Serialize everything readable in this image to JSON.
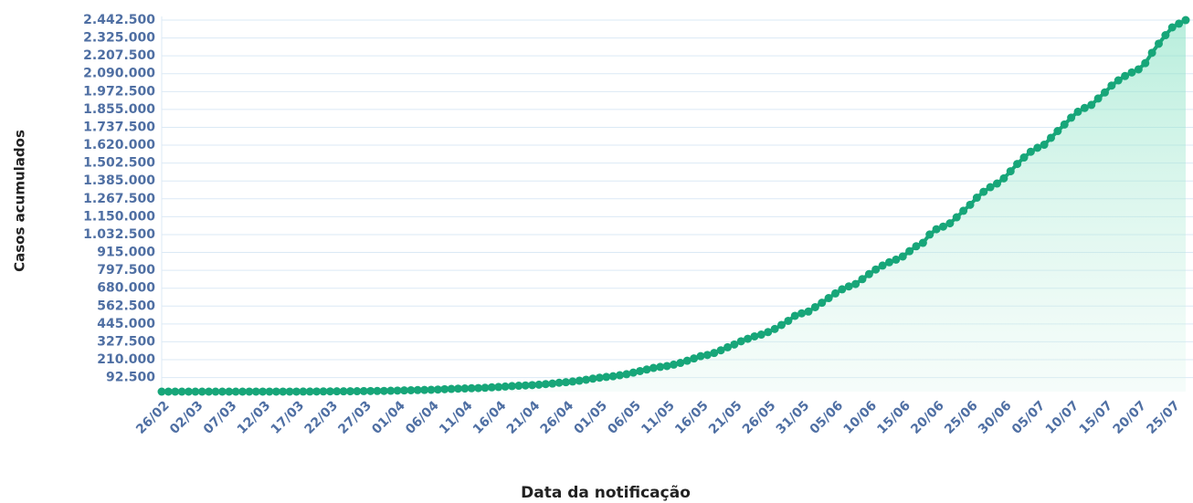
{
  "chart_data": {
    "type": "area-line",
    "y_label": "Casos acumulados",
    "x_label": "Data da notificação",
    "color": "#17a679",
    "grid": true,
    "ylim": [
      0,
      2442500
    ],
    "yticks": [
      {
        "value": 92500,
        "label": "92.500"
      },
      {
        "value": 210000,
        "label": "210.000"
      },
      {
        "value": 327500,
        "label": "327.500"
      },
      {
        "value": 445000,
        "label": "445.000"
      },
      {
        "value": 562500,
        "label": "562.500"
      },
      {
        "value": 680000,
        "label": "680.000"
      },
      {
        "value": 797500,
        "label": "797.500"
      },
      {
        "value": 915000,
        "label": "915.000"
      },
      {
        "value": 1032500,
        "label": "1.032.500"
      },
      {
        "value": 1150000,
        "label": "1.150.000"
      },
      {
        "value": 1267500,
        "label": "1.267.500"
      },
      {
        "value": 1385000,
        "label": "1.385.000"
      },
      {
        "value": 1502500,
        "label": "1.502.500"
      },
      {
        "value": 1620000,
        "label": "1.620.000"
      },
      {
        "value": 1737500,
        "label": "1.737.500"
      },
      {
        "value": 1855000,
        "label": "1.855.000"
      },
      {
        "value": 1972500,
        "label": "1.972.500"
      },
      {
        "value": 2090000,
        "label": "2.090.000"
      },
      {
        "value": 2207500,
        "label": "2.207.500"
      },
      {
        "value": 2325000,
        "label": "2.325.000"
      },
      {
        "value": 2442500,
        "label": "2.442.500"
      }
    ],
    "categories": [
      "26/02",
      null,
      null,
      null,
      null,
      "02/03",
      null,
      null,
      null,
      null,
      "07/03",
      null,
      null,
      null,
      null,
      "12/03",
      null,
      null,
      null,
      null,
      "17/03",
      null,
      null,
      null,
      null,
      "22/03",
      null,
      null,
      null,
      null,
      "27/03",
      null,
      null,
      null,
      null,
      "01/04",
      null,
      null,
      null,
      null,
      "06/04",
      null,
      null,
      null,
      null,
      "11/04",
      null,
      null,
      null,
      null,
      "16/04",
      null,
      null,
      null,
      null,
      "21/04",
      null,
      null,
      null,
      null,
      "26/04",
      null,
      null,
      null,
      null,
      "01/05",
      null,
      null,
      null,
      null,
      "06/05",
      null,
      null,
      null,
      null,
      "11/05",
      null,
      null,
      null,
      null,
      "16/05",
      null,
      null,
      null,
      null,
      "21/05",
      null,
      null,
      null,
      null,
      "26/05",
      null,
      null,
      null,
      null,
      "31/05",
      null,
      null,
      null,
      null,
      "05/06",
      null,
      null,
      null,
      null,
      "10/06",
      null,
      null,
      null,
      null,
      "15/06",
      null,
      null,
      null,
      null,
      "20/06",
      null,
      null,
      null,
      null,
      "25/06",
      null,
      null,
      null,
      null,
      "30/06",
      null,
      null,
      null,
      null,
      "05/07",
      null,
      null,
      null,
      null,
      "10/07",
      null,
      null,
      null,
      null,
      "15/07",
      null,
      null,
      null,
      null,
      "20/07",
      null,
      null,
      null,
      null,
      "25/07",
      null,
      null
    ],
    "values": [
      1,
      1,
      1,
      2,
      2,
      2,
      2,
      3,
      8,
      13,
      19,
      25,
      25,
      34,
      52,
      77,
      98,
      121,
      200,
      234,
      291,
      428,
      621,
      904,
      1128,
      1546,
      1891,
      2201,
      2433,
      2915,
      3417,
      3904,
      4256,
      4579,
      5717,
      6836,
      7910,
      9056,
      10278,
      11130,
      12056,
      13717,
      15927,
      17857,
      19638,
      20727,
      22169,
      23430,
      25262,
      28320,
      30425,
      33682,
      36599,
      38654,
      40581,
      43079,
      45757,
      49492,
      52995,
      58509,
      61888,
      66501,
      71886,
      78162,
      85380,
      91589,
      96396,
      101147,
      107780,
      114715,
      125218,
      135106,
      145328,
      155939,
      162699,
      168331,
      177589,
      188974,
      202918,
      218223,
      233142,
      241080,
      254220,
      271628,
      291579,
      310087,
      330890,
      347398,
      363211,
      374898,
      391222,
      411821,
      438238,
      465166,
      498440,
      514849,
      526447,
      555383,
      584016,
      614941,
      645771,
      672846,
      691758,
      707412,
      739503,
      772416,
      802828,
      828810,
      850514,
      867624,
      888271,
      923189,
      955377,
      978142,
      1032913,
      1067579,
      1085038,
      1106470,
      1145906,
      1188631,
      1228114,
      1274974,
      1313667,
      1344143,
      1368195,
      1402041,
      1448753,
      1496858,
      1539081,
      1577004,
      1603055,
      1623284,
      1668589,
      1713160,
      1755779,
      1800827,
      1839850,
      1864681,
      1884967,
      1926824,
      1966748,
      2012151,
      2046328,
      2074860,
      2098389,
      2118646,
      2159654,
      2227514,
      2287475,
      2343366,
      2394513,
      2419091,
      2442375
    ]
  }
}
